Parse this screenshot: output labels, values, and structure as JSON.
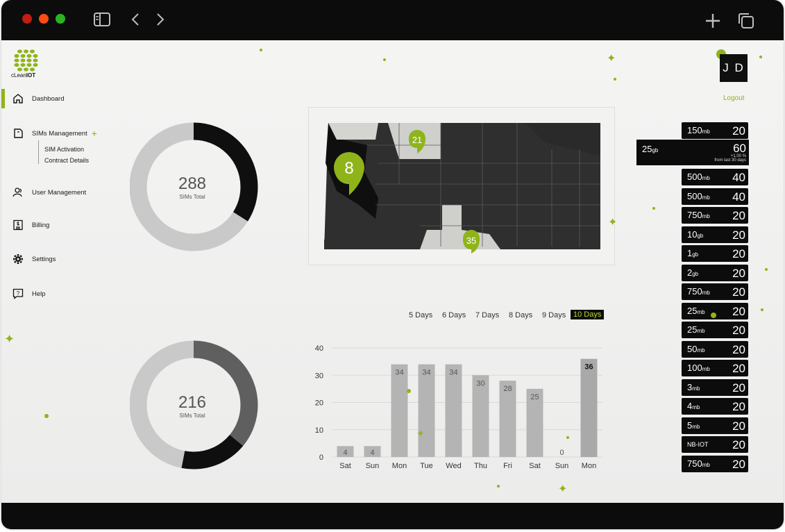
{
  "window": {
    "traffic_lights": [
      "#c51b13",
      "#ff4a13",
      "#2ab424"
    ],
    "icons": [
      "sidebar-toggle-icon",
      "back-icon",
      "forward-icon",
      "new-tab-icon",
      "tabs-overview-icon"
    ]
  },
  "brand": {
    "logo_prefix": "cLean",
    "logo_suffix": "IOT",
    "accent": "#8fb41a"
  },
  "sidebar": {
    "items": [
      {
        "label": "Dashboard",
        "icon": "home-icon"
      },
      {
        "label": "SIMs Management",
        "icon": "sim-card-icon"
      },
      {
        "label": "User Management",
        "icon": "users-icon"
      },
      {
        "label": "Billing",
        "icon": "billing-icon"
      },
      {
        "label": "Settings",
        "icon": "gear-icon"
      },
      {
        "label": "Help",
        "icon": "help-icon"
      }
    ],
    "sub_items": [
      {
        "label": "SIM Activation"
      },
      {
        "label": "Contract Details"
      }
    ]
  },
  "header": {
    "avatar_initials": "J D",
    "logout": "Logout"
  },
  "donuts": [
    {
      "value": "288",
      "label": "SIMs Total",
      "fraction_dark": 0.34
    },
    {
      "value": "216",
      "label": "SIMs Total",
      "fraction_dark": 0.53
    }
  ],
  "map": {
    "markers": [
      {
        "label": "8"
      },
      {
        "label": "21"
      },
      {
        "label": "35"
      }
    ]
  },
  "day_filters": [
    {
      "label": "5 Days",
      "active": false
    },
    {
      "label": "6 Days",
      "active": false
    },
    {
      "label": "7 Days",
      "active": false
    },
    {
      "label": "8 Days",
      "active": false
    },
    {
      "label": "9 Days",
      "active": false
    },
    {
      "label": "10 Days",
      "active": true
    }
  ],
  "chart_data": {
    "type": "bar",
    "categories": [
      "Sat",
      "Sun",
      "Mon",
      "Tue",
      "Wed",
      "Thu",
      "Fri",
      "Sat",
      "Sun",
      "Mon"
    ],
    "values": [
      4,
      4,
      34,
      34,
      34,
      30,
      28,
      25,
      0,
      36
    ],
    "ylim": [
      0,
      40
    ],
    "yticks": [
      0,
      10,
      20,
      30,
      40
    ],
    "grid": true
  },
  "plans_top": {
    "size": "150",
    "unit": "mb",
    "count": "20"
  },
  "plan_featured": {
    "size": "25",
    "unit": "gb",
    "count": "60",
    "delta": "+1.00 %",
    "delta_note": "from last 30 days"
  },
  "plans": [
    {
      "size": "500",
      "unit": "mb",
      "count": "40"
    },
    {
      "size": "500",
      "unit": "mb",
      "count": "40"
    },
    {
      "size": "750",
      "unit": "mb",
      "count": "20"
    },
    {
      "size": "10",
      "unit": "gb",
      "count": "20"
    },
    {
      "size": "1",
      "unit": "gb",
      "count": "20"
    },
    {
      "size": "2",
      "unit": "gb",
      "count": "20"
    },
    {
      "size": "750",
      "unit": "mb",
      "count": "20"
    },
    {
      "size": "25",
      "unit": "mb",
      "count": "20"
    },
    {
      "size": "25",
      "unit": "mb",
      "count": "20"
    },
    {
      "size": "50",
      "unit": "mb",
      "count": "20"
    },
    {
      "size": "100",
      "unit": "mb",
      "count": "20"
    },
    {
      "size": "3",
      "unit": "mb",
      "count": "20"
    },
    {
      "size": "4",
      "unit": "mb",
      "count": "20"
    },
    {
      "size": "5",
      "unit": "mb",
      "count": "20"
    },
    {
      "size": "NB-IOT",
      "unit": "",
      "count": "20"
    },
    {
      "size": "750",
      "unit": "mb",
      "count": "20"
    }
  ]
}
